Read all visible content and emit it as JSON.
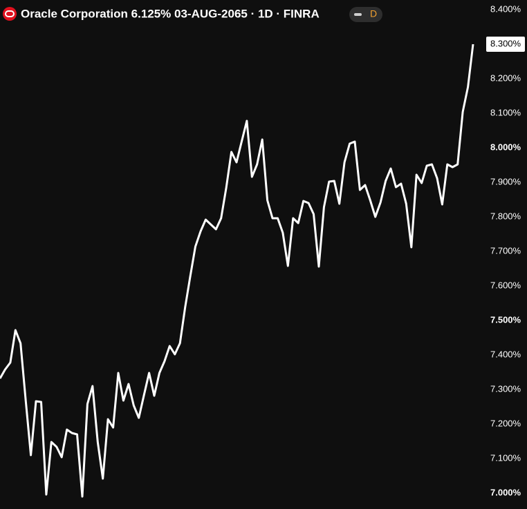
{
  "chart_data": {
    "type": "line",
    "title": "Oracle Corporation 6.125% 03-AUG-2065 · 1D · FINRA",
    "interval_badge": "D",
    "color": "#ffffff",
    "values": [
      7.332,
      7.358,
      7.378,
      7.472,
      7.434,
      7.268,
      7.11,
      7.266,
      7.264,
      6.996,
      7.148,
      7.134,
      7.104,
      7.184,
      7.174,
      7.17,
      6.99,
      7.258,
      7.31,
      7.148,
      7.042,
      7.214,
      7.19,
      7.348,
      7.268,
      7.316,
      7.254,
      7.218,
      7.284,
      7.348,
      7.282,
      7.348,
      7.382,
      7.426,
      7.402,
      7.434,
      7.538,
      7.628,
      7.714,
      7.758,
      7.792,
      7.778,
      7.764,
      7.796,
      7.884,
      7.988,
      7.958,
      8.018,
      8.078,
      7.916,
      7.952,
      8.024,
      7.848,
      7.796,
      7.796,
      7.754,
      7.658,
      7.796,
      7.782,
      7.846,
      7.84,
      7.808,
      7.656,
      7.828,
      7.902,
      7.904,
      7.838,
      7.958,
      8.012,
      8.018,
      7.878,
      7.892,
      7.848,
      7.8,
      7.842,
      7.904,
      7.94,
      7.886,
      7.896,
      7.838,
      7.712,
      7.922,
      7.898,
      7.948,
      7.952,
      7.912,
      7.836,
      7.952,
      7.944,
      7.952,
      8.104,
      8.176,
      8.3
    ],
    "last_value_label": "8.300%",
    "ylim": [
      6.954,
      8.428
    ],
    "yticks": [
      {
        "value": 7.0,
        "label": "7.000%"
      },
      {
        "value": 7.1,
        "label": "7.100%"
      },
      {
        "value": 7.2,
        "label": "7.200%"
      },
      {
        "value": 7.3,
        "label": "7.300%"
      },
      {
        "value": 7.4,
        "label": "7.400%"
      },
      {
        "value": 7.5,
        "label": "7.500%"
      },
      {
        "value": 7.6,
        "label": "7.600%"
      },
      {
        "value": 7.7,
        "label": "7.700%"
      },
      {
        "value": 7.8,
        "label": "7.800%"
      },
      {
        "value": 7.9,
        "label": "7.900%"
      },
      {
        "value": 8.0,
        "label": "8.000%"
      },
      {
        "value": 8.1,
        "label": "8.100%"
      },
      {
        "value": 8.2,
        "label": "8.200%"
      },
      {
        "value": 8.3,
        "label": "8.300%"
      },
      {
        "value": 8.4,
        "label": "8.400%"
      }
    ]
  }
}
